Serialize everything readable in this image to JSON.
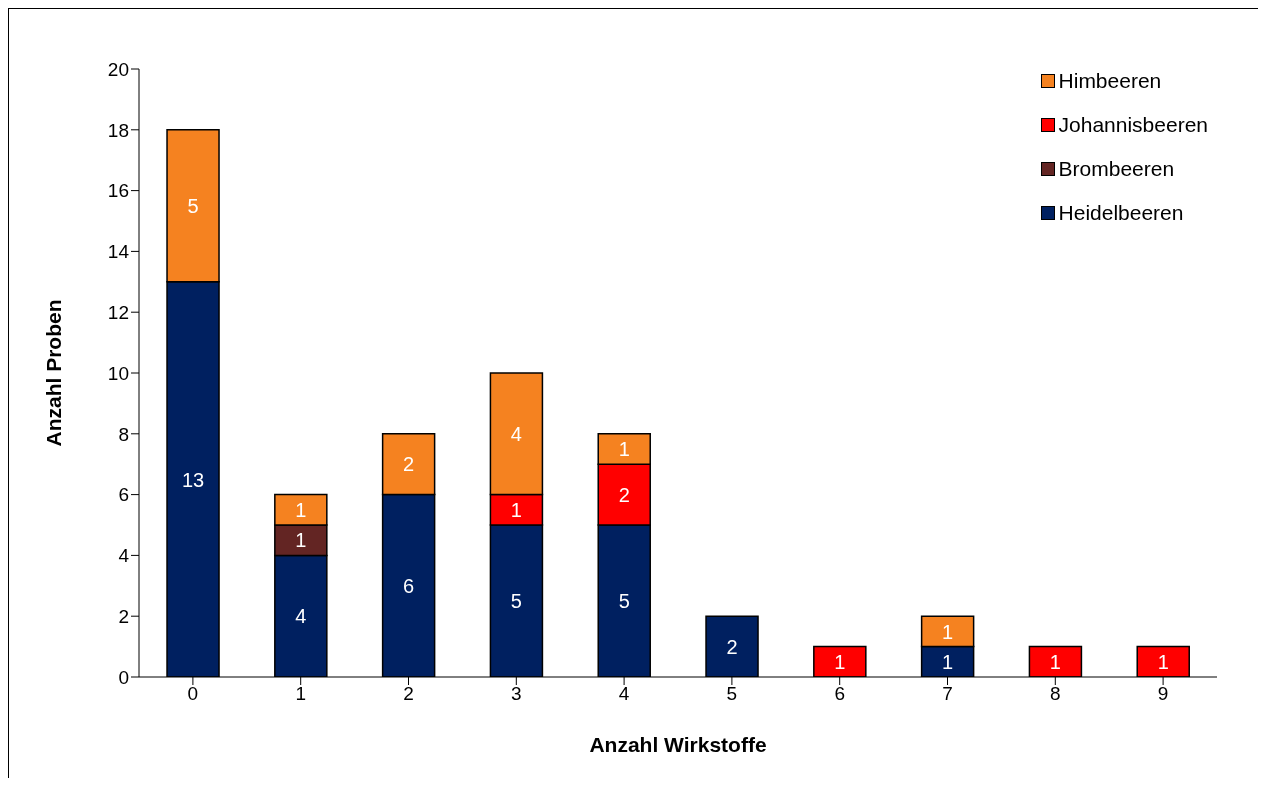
{
  "chart_data": {
    "type": "bar",
    "stacked": true,
    "xlabel": "Anzahl Wirkstoffe",
    "ylabel": "Anzahl Proben",
    "categories": [
      "0",
      "1",
      "2",
      "3",
      "4",
      "5",
      "6",
      "7",
      "8",
      "9"
    ],
    "series": [
      {
        "name": "Heidelbeeren",
        "color": "#002060",
        "values": [
          13,
          4,
          6,
          5,
          5,
          2,
          null,
          1,
          null,
          null
        ]
      },
      {
        "name": "Brombeeren",
        "color": "#632523",
        "values": [
          null,
          1,
          null,
          null,
          null,
          null,
          null,
          null,
          null,
          null
        ]
      },
      {
        "name": "Johannisbeeren",
        "color": "#ff0000",
        "values": [
          null,
          null,
          null,
          1,
          2,
          null,
          1,
          null,
          1,
          1
        ]
      },
      {
        "name": "Himbeeren",
        "color": "#f58220",
        "values": [
          5,
          1,
          2,
          4,
          1,
          null,
          null,
          1,
          null,
          null
        ]
      }
    ],
    "ylim": [
      0,
      20
    ],
    "yticks": [
      0,
      2,
      4,
      6,
      8,
      10,
      12,
      14,
      16,
      18,
      20
    ],
    "data_labels": true,
    "legend": "top right",
    "grid": false
  }
}
